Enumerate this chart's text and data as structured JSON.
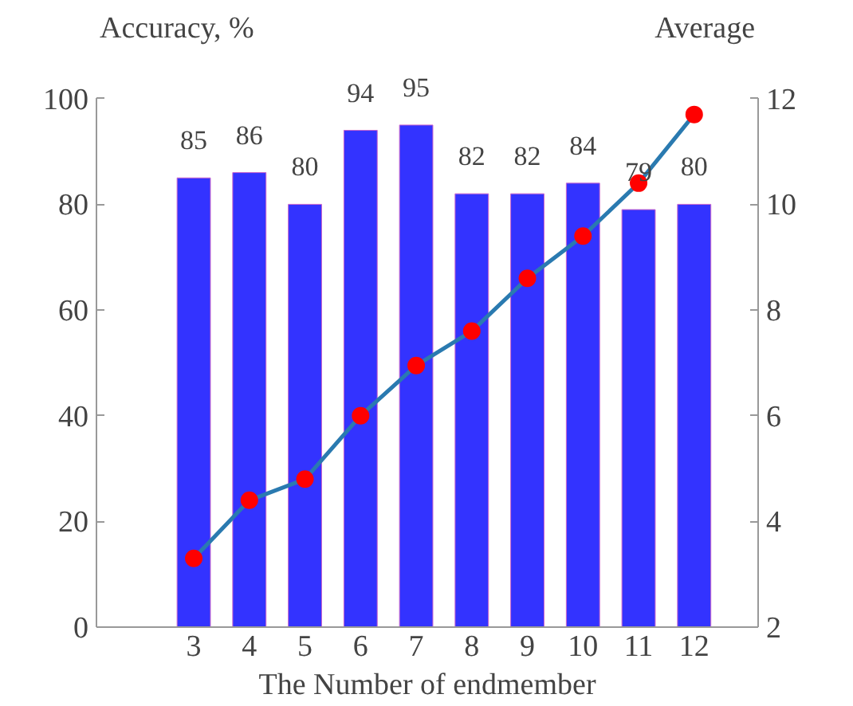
{
  "chart_data": {
    "type": "bar",
    "ylabel": "Accuracy, %",
    "y2label": "Average",
    "xlabel": "The Number of endmember",
    "categories": [
      "3",
      "4",
      "5",
      "6",
      "7",
      "8",
      "9",
      "10",
      "11",
      "12"
    ],
    "series": [
      {
        "color": "#3333ff",
        "values": [
          85,
          86,
          80,
          94,
          95,
          82,
          82,
          84,
          79,
          80
        ],
        "value_labels": [
          "85",
          "86",
          "80",
          "94",
          "95",
          "82",
          "82",
          "84",
          "79",
          "80"
        ]
      },
      {
        "type": "line",
        "axis": "y2",
        "color": "#2a7ab0",
        "colors": [
          "#ff0000",
          "#ff0000",
          "#ff0000",
          "#ff0000",
          "#ff0000",
          "#ff0000",
          "#ff0000",
          "#ff0000",
          "#ff0000",
          "#ff0000"
        ],
        "marker": "circle",
        "values": [
          3.3,
          4.4,
          4.8,
          6.0,
          6.95,
          7.6,
          8.6,
          9.4,
          10.4,
          11.7
        ]
      }
    ],
    "ylim": [
      0,
      100
    ],
    "yticks": [
      0,
      20,
      40,
      60,
      80,
      100
    ],
    "y2lim": [
      2,
      12
    ],
    "y2ticks": [
      2,
      4,
      6,
      8,
      10,
      12
    ],
    "grid": false
  }
}
